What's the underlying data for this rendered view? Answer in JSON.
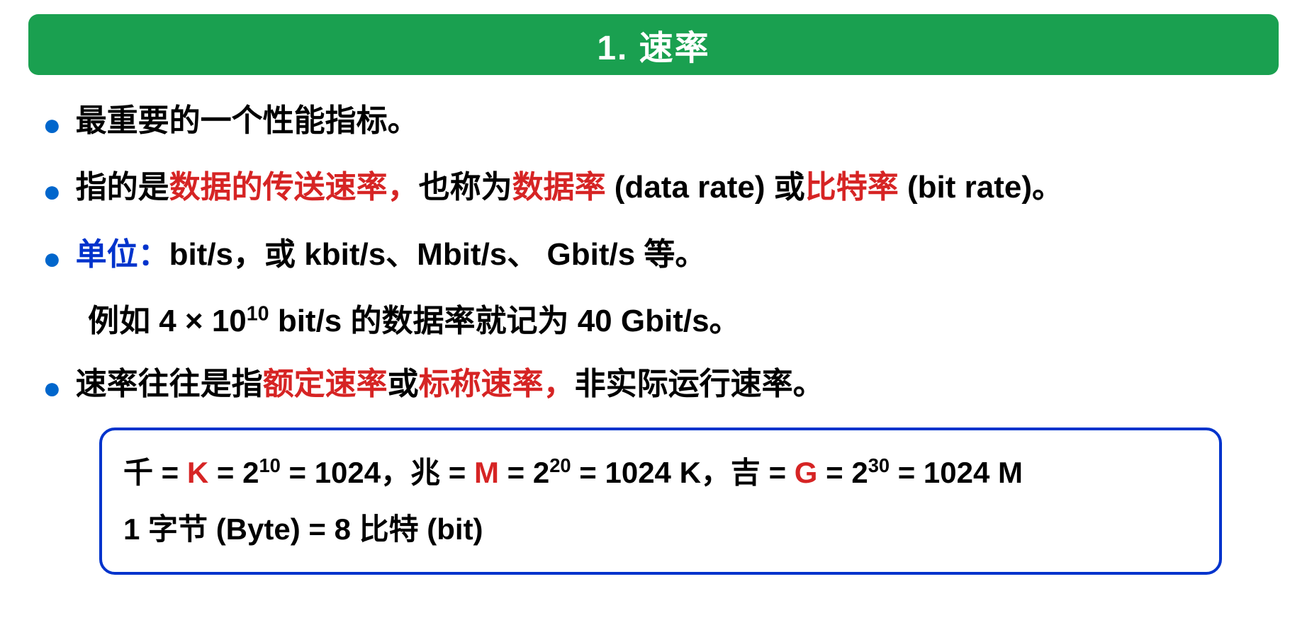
{
  "title": "1. 速率",
  "colors": {
    "title_bg": "#1aa050",
    "title_text": "#ffffff",
    "bullet": "#0066cc",
    "text": "#000000",
    "highlight_red": "#d62424",
    "highlight_blue": "#0033cc",
    "box_border": "#0033cc",
    "background": "#ffffff"
  },
  "bullets": {
    "b1": "最重要的一个性能指标。",
    "b2_p1": "指的是",
    "b2_red1": "数据的传送速率，",
    "b2_p2": "也称为",
    "b2_red2": "数据率",
    "b2_p3": " (data rate) 或",
    "b2_red3": "比特率",
    "b2_p4": " (bit rate)。",
    "b3_blue": "单位：",
    "b3_rest": "bit/s，或 kbit/s、Mbit/s、 Gbit/s 等。",
    "b3_example_p1": "例如 4 × 10",
    "b3_example_sup": "10",
    "b3_example_p2": "  bit/s 的数据率就记为 40 Gbit/s。",
    "b4_p1": "速率往往是指",
    "b4_red1": "额定速率",
    "b4_p2": "或",
    "b4_red2": "标称速率，",
    "b4_p3": "非实际运行速率。"
  },
  "box": {
    "l1_p1": "千 = ",
    "l1_k": "K",
    "l1_p2": " = 2",
    "l1_sup1": "10",
    "l1_p3": " = 1024，兆 = ",
    "l1_m": "M",
    "l1_p4": " = 2",
    "l1_sup2": "20",
    "l1_p5": " = 1024 K，吉 = ",
    "l1_g": "G",
    "l1_p6": " = 2",
    "l1_sup3": "30",
    "l1_p7": " = 1024 M",
    "l2": "1 字节 (Byte) =  8 比特 (bit)"
  }
}
